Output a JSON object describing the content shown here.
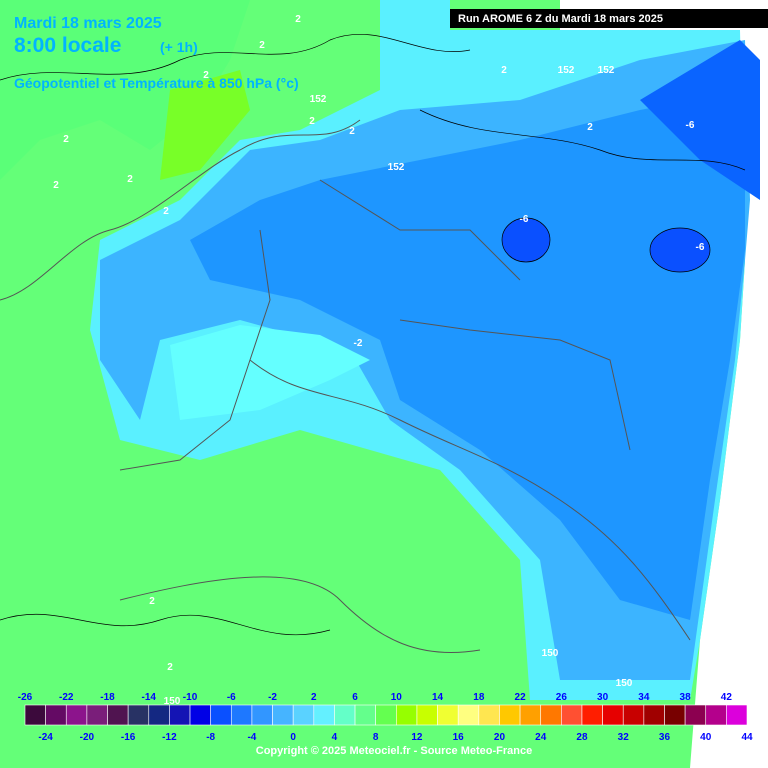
{
  "header": {
    "date": "Mardi 18 mars 2025",
    "time": "8:00 locale",
    "offset": "(+ 1h)",
    "field": "Géopotentiel et Température à 850 hPa (°c)",
    "run": "Run AROME 6 Z du Mardi 18 mars 2025"
  },
  "contour_labels": [
    "2",
    "2",
    "2",
    "2",
    "2",
    "2",
    "2",
    "2",
    "2",
    "2",
    "2",
    "152",
    "152",
    "152",
    "152",
    "-6",
    "-6",
    "-6",
    "-2",
    "2",
    "2",
    "150",
    "150",
    "150"
  ],
  "colorbar": {
    "top_labels": [
      "-26",
      "-22",
      "-18",
      "-14",
      "-10",
      "-6",
      "-2",
      "2",
      "6",
      "10",
      "14",
      "18",
      "22",
      "26",
      "30",
      "34",
      "38",
      "42"
    ],
    "bottom_labels": [
      "-24",
      "-20",
      "-16",
      "-12",
      "-8",
      "-4",
      "0",
      "4",
      "8",
      "12",
      "16",
      "20",
      "24",
      "28",
      "32",
      "36",
      "40",
      "44"
    ],
    "colors": [
      "#3c0a3c",
      "#640a64",
      "#8c148c",
      "#7a1e7a",
      "#501450",
      "#283264",
      "#142882",
      "#1414b4",
      "#0000e6",
      "#0a50ff",
      "#1e78ff",
      "#3296ff",
      "#46b4ff",
      "#5ad2ff",
      "#64f0ff",
      "#64ffc8",
      "#64ff8c",
      "#64ff50",
      "#96ff00",
      "#c8ff00",
      "#f0ff32",
      "#ffff80",
      "#ffe650",
      "#ffc800",
      "#ffa000",
      "#ff7800",
      "#ff5032",
      "#ff1e00",
      "#e60000",
      "#c80000",
      "#a00000",
      "#780000",
      "#8c0050",
      "#b4008c",
      "#dc00dc"
    ]
  },
  "footer": {
    "copyright": "Copyright © 2025 Meteociel.fr - Source Meteo-France"
  }
}
